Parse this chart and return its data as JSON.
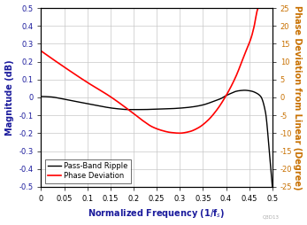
{
  "xlabel": "Normalized Frequency (1/f$_s$)",
  "ylabel_left": "Magnitude (dB)",
  "ylabel_right": "Phase Deviation from Linear (Degree)",
  "xlim": [
    0,
    0.5
  ],
  "ylim_left": [
    -0.5,
    0.5
  ],
  "ylim_right": [
    -25,
    25
  ],
  "xticks": [
    0,
    0.05,
    0.1,
    0.15,
    0.2,
    0.25,
    0.3,
    0.35,
    0.4,
    0.45,
    0.5
  ],
  "yticks_left": [
    -0.5,
    -0.4,
    -0.3,
    -0.2,
    -0.1,
    0.0,
    0.1,
    0.2,
    0.3,
    0.4,
    0.5
  ],
  "yticks_right": [
    -25,
    -20,
    -15,
    -10,
    -5,
    0,
    5,
    10,
    15,
    20,
    25
  ],
  "legend_labels": [
    "Pass-Band Ripple",
    "Phase Deviation"
  ],
  "grid_color": "#c8c8c8",
  "background_color": "#ffffff",
  "line_color_ripple": "black",
  "line_color_phase": "red",
  "left_axis_color": "#1a1a9c",
  "right_axis_color": "#c87000",
  "watermark": "Q3D13",
  "phase_points_x": [
    0.0,
    0.05,
    0.1,
    0.15,
    0.2,
    0.22,
    0.24,
    0.26,
    0.28,
    0.3,
    0.32,
    0.34,
    0.36,
    0.38,
    0.4,
    0.42,
    0.44,
    0.455,
    0.46,
    0.47,
    0.48,
    0.49,
    0.5
  ],
  "phase_points_y": [
    13.0,
    8.5,
    4.2,
    0.2,
    -4.5,
    -6.5,
    -8.2,
    -9.2,
    -9.8,
    -10.0,
    -9.6,
    -8.5,
    -6.5,
    -3.5,
    0.5,
    5.5,
    12.0,
    17.0,
    19.5,
    25.0,
    25.0,
    25.0,
    25.0
  ],
  "ripple_points_x": [
    0.0,
    0.02,
    0.05,
    0.08,
    0.1,
    0.13,
    0.16,
    0.19,
    0.22,
    0.25,
    0.28,
    0.31,
    0.33,
    0.35,
    0.37,
    0.39,
    0.4,
    0.41,
    0.42,
    0.43,
    0.44,
    0.455,
    0.465,
    0.475,
    0.485,
    0.495,
    0.5
  ],
  "ripple_points_y": [
    0.005,
    0.003,
    -0.01,
    -0.025,
    -0.035,
    -0.05,
    -0.062,
    -0.068,
    -0.068,
    -0.065,
    -0.063,
    -0.058,
    -0.052,
    -0.042,
    -0.025,
    -0.005,
    0.01,
    0.022,
    0.033,
    0.038,
    0.04,
    0.035,
    0.025,
    0.005,
    -0.08,
    -0.35,
    -0.5
  ]
}
